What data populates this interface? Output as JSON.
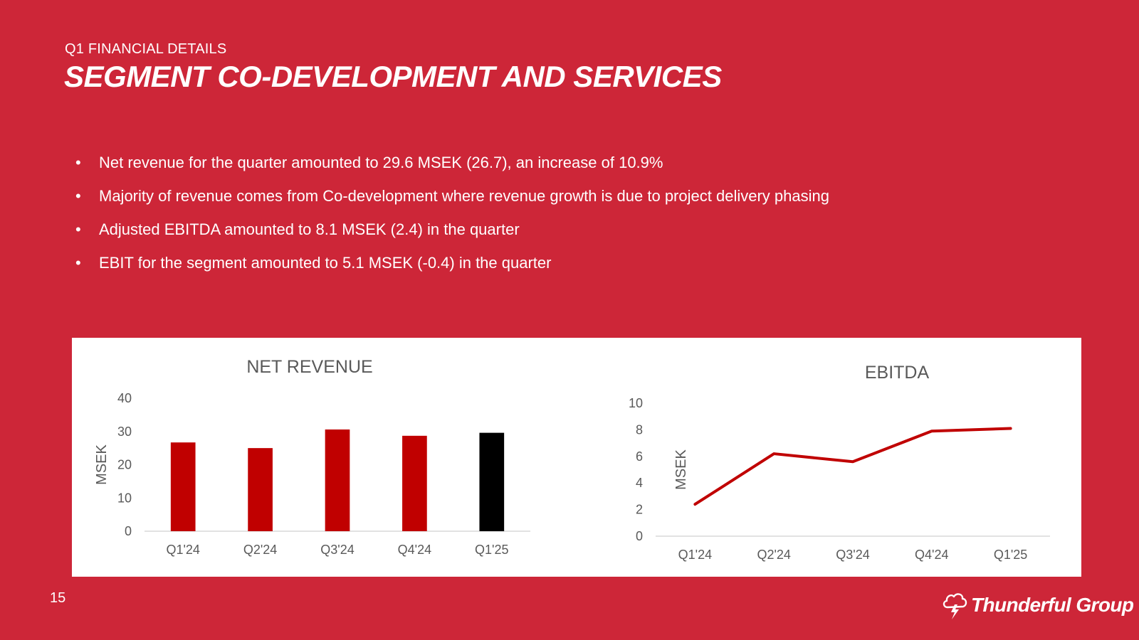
{
  "header": {
    "eyebrow": "Q1 FINANCIAL DETAILS",
    "title": "SEGMENT CO-DEVELOPMENT AND SERVICES"
  },
  "bullets": [
    "Net revenue for the quarter amounted to 29.6 MSEK (26.7), an increase of 10.9%",
    "Majority of revenue comes from Co-development where revenue growth is due to project delivery phasing",
    "Adjusted EBITDA amounted to 8.1 MSEK (2.4) in the quarter",
    "EBIT for the segment amounted to 5.1 MSEK (-0.4) in the quarter"
  ],
  "bullet_symbol": "•",
  "colors": {
    "background": "#cd2638",
    "bar_red": "#c00000",
    "bar_black": "#000000",
    "line_red": "#c00000",
    "axis_text": "#595959"
  },
  "chart_data": [
    {
      "type": "bar",
      "title": "NET REVENUE",
      "ylabel": "MSEK",
      "xlabel": "",
      "categories": [
        "Q1'24",
        "Q2'24",
        "Q3'24",
        "Q4'24",
        "Q1'25"
      ],
      "values": [
        26.7,
        25.0,
        30.6,
        28.7,
        29.6
      ],
      "highlight_index": 4,
      "ylim": [
        0,
        40
      ],
      "yticks": [
        0,
        10,
        20,
        30,
        40
      ],
      "grid": false
    },
    {
      "type": "line",
      "title": "EBITDA",
      "ylabel": "MSEK",
      "xlabel": "",
      "categories": [
        "Q1'24",
        "Q2'24",
        "Q3'24",
        "Q4'24",
        "Q1'25"
      ],
      "values": [
        2.4,
        6.2,
        5.6,
        7.9,
        8.1
      ],
      "ylim": [
        0,
        10
      ],
      "yticks": [
        0,
        2,
        4,
        6,
        8,
        10
      ],
      "grid": false
    }
  ],
  "footer": {
    "page_number": "15",
    "logo_text": "Thunderful Group",
    "logo_icon": "thundercloud-icon"
  }
}
